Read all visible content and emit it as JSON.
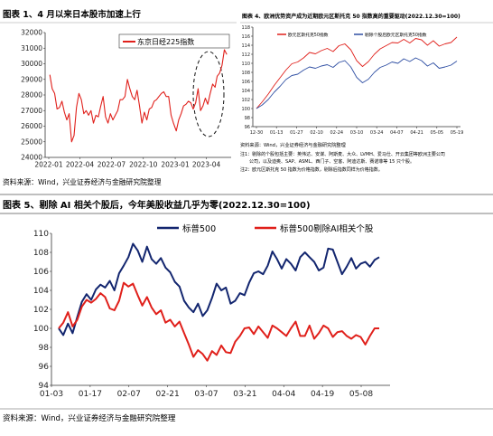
{
  "colors": {
    "heading": "#1a1a1a",
    "grid": "#d9d9d9",
    "axis": "#333333",
    "red": "#e0201b",
    "navy": "#13266f",
    "blue": "#2f4fa3",
    "note": "#444444"
  },
  "panels": {
    "p1": {
      "heading": "图表 1、4 月以来日本股市加速上行",
      "source": "资料来源：Wind，兴业证券经济与金融研究院整理"
    },
    "p2": {
      "heading": "图表 4、欧洲优势资产成为近期欧元区斯托克 50 指数高的重要驱动(2022.12.30=100)",
      "source": "资料来源：Wind，兴业证券经济与金融研究院整理",
      "notes": [
        "注1：剔除的个股包括主要：英伟达、安谋、阿斯麦、大众、LVMH、爱马仕、开云集团等欧洲主要公司",
        "公司，以及迪奥、SAP、ASML、西门子、空客、阿迪达斯、赛诺菲等 15 只个股。",
        "注2：欧元区斯托克 50 指数为价格指数，剔除后指数同样为价格指数。"
      ]
    },
    "p3": {
      "heading": "图表 5、剔除 AI 相关个股后，今年美股收益几乎为零(2022.12.30=100)",
      "source": "资料来源：Wind，兴业证券经济与金融研究院整理"
    }
  },
  "chart_data": [
    {
      "type": "line",
      "title": "",
      "legend": [
        "东京日经225指数"
      ],
      "legend_position": "top-right",
      "ylim": [
        24000,
        32000
      ],
      "yticks": [
        24000,
        25000,
        26000,
        27000,
        28000,
        29000,
        30000,
        31000,
        32000
      ],
      "xticks": [
        "2022-01",
        "2022-04",
        "2022-07",
        "2022-10",
        "2023-01",
        "2023-04"
      ],
      "grid": false,
      "annotation": "dashed ellipse around Apr–May 2023 rally",
      "series": [
        {
          "name": "东京日经225指数",
          "color": "red",
          "x": [
            "2022-01-04",
            "2022-01-11",
            "2022-01-18",
            "2022-01-25",
            "2022-02-01",
            "2022-02-08",
            "2022-02-15",
            "2022-02-22",
            "2022-03-01",
            "2022-03-08",
            "2022-03-15",
            "2022-03-22",
            "2022-03-29",
            "2022-04-05",
            "2022-04-12",
            "2022-04-19",
            "2022-04-26",
            "2022-05-03",
            "2022-05-10",
            "2022-05-17",
            "2022-05-24",
            "2022-05-31",
            "2022-06-07",
            "2022-06-14",
            "2022-06-21",
            "2022-06-28",
            "2022-07-05",
            "2022-07-12",
            "2022-07-19",
            "2022-07-26",
            "2022-08-02",
            "2022-08-09",
            "2022-08-16",
            "2022-08-23",
            "2022-08-30",
            "2022-09-06",
            "2022-09-13",
            "2022-09-20",
            "2022-09-27",
            "2022-10-04",
            "2022-10-11",
            "2022-10-18",
            "2022-10-25",
            "2022-11-01",
            "2022-11-08",
            "2022-11-15",
            "2022-11-22",
            "2022-11-29",
            "2022-12-06",
            "2022-12-13",
            "2022-12-20",
            "2022-12-27",
            "2023-01-04",
            "2023-01-11",
            "2023-01-18",
            "2023-01-25",
            "2023-02-01",
            "2023-02-08",
            "2023-02-15",
            "2023-02-22",
            "2023-03-01",
            "2023-03-08",
            "2023-03-15",
            "2023-03-22",
            "2023-03-29",
            "2023-04-05",
            "2023-04-12",
            "2023-04-19",
            "2023-04-26",
            "2023-05-02",
            "2023-05-09",
            "2023-05-16",
            "2023-05-23",
            "2023-05-30"
          ],
          "values": [
            29300,
            28400,
            28100,
            27100,
            27200,
            27600,
            26900,
            26400,
            26800,
            25000,
            25400,
            27200,
            28100,
            27700,
            26800,
            27000,
            26700,
            27000,
            26200,
            26700,
            26600,
            27300,
            27900,
            26600,
            26200,
            26800,
            26400,
            26700,
            27000,
            27700,
            27700,
            27900,
            29000,
            28400,
            27900,
            27700,
            28300,
            27300,
            26200,
            26900,
            26400,
            27100,
            27200,
            27600,
            27700,
            27900,
            28100,
            28200,
            27900,
            27900,
            26700,
            26200,
            25700,
            26400,
            26800,
            27300,
            27400,
            27600,
            27500,
            27100,
            27500,
            28400,
            27000,
            27300,
            27800,
            27400,
            28100,
            28700,
            28500,
            29200,
            29400,
            29900,
            30900,
            30600
          ]
        }
      ]
    },
    {
      "type": "line",
      "title": "",
      "ylim": [
        96,
        118
      ],
      "yticks": [
        96,
        98,
        100,
        102,
        104,
        106,
        108,
        110,
        112,
        114,
        116,
        118
      ],
      "xticks": [
        "12-30",
        "01-13",
        "01-27",
        "02-10",
        "02-24",
        "03-10",
        "03-24",
        "04-07",
        "04-21",
        "05-05",
        "05-19"
      ],
      "grid": false,
      "legend_position": "top-right",
      "series": [
        {
          "name": "欧元区斯托克50指数",
          "color": "red",
          "values": [
            100,
            101.5,
            103.2,
            105.1,
            106.8,
            108.5,
            109.9,
            110.3,
            111.2,
            112.4,
            112.1,
            112.8,
            113.3,
            112.6,
            113.9,
            114.3,
            113.0,
            110.6,
            109.3,
            110.4,
            112.0,
            113.2,
            113.9,
            114.6,
            114.5,
            115.3,
            114.5,
            115.5,
            115.2,
            114.0,
            115.0,
            113.8,
            114.3,
            114.6,
            115.8
          ]
        },
        {
          "name": "剔除个股后欧元区斯托克50指数",
          "color": "blue",
          "values": [
            100,
            100.8,
            102.0,
            103.6,
            104.9,
            106.4,
            107.3,
            107.6,
            108.5,
            109.2,
            108.9,
            109.4,
            109.7,
            109.1,
            110.2,
            110.6,
            109.2,
            106.9,
            105.7,
            106.5,
            108.0,
            109.1,
            109.6,
            110.3,
            110.0,
            111.0,
            110.4,
            111.2,
            110.6,
            109.4,
            110.1,
            108.9,
            109.2,
            109.6,
            110.5
          ]
        }
      ]
    },
    {
      "type": "line",
      "title": "",
      "ylim": [
        94,
        110
      ],
      "yticks": [
        94,
        96,
        98,
        100,
        102,
        104,
        106,
        108,
        110
      ],
      "xticks": [
        "01-03",
        "01-17",
        "02-07",
        "02-21",
        "03-07",
        "03-21",
        "04-04",
        "04-19",
        "05-08"
      ],
      "grid": false,
      "legend_position": "top",
      "series": [
        {
          "name": "标普500",
          "color": "navy",
          "values": [
            100,
            99.3,
            100.5,
            99.5,
            101.2,
            102.8,
            103.6,
            103.0,
            104.1,
            104.6,
            104.3,
            105.0,
            104.0,
            105.8,
            106.6,
            107.5,
            108.9,
            108.2,
            107.0,
            108.6,
            107.3,
            106.8,
            107.4,
            106.4,
            105.9,
            104.9,
            104.4,
            102.9,
            102.2,
            101.7,
            102.6,
            101.3,
            101.9,
            103.2,
            104.7,
            104.0,
            104.3,
            102.6,
            102.9,
            103.7,
            103.5,
            104.8,
            105.8,
            106.0,
            105.7,
            106.6,
            108.1,
            107.3,
            106.3,
            107.3,
            106.8,
            106.1,
            107.5,
            108.0,
            107.5,
            107.0,
            106.1,
            106.4,
            108.4,
            108.3,
            107.0,
            105.7,
            106.5,
            107.4,
            106.3,
            106.8,
            107.0,
            106.5,
            107.2,
            107.5
          ]
        },
        {
          "name": "标普500剔除AI相关个股",
          "color": "red",
          "values": [
            100,
            100.6,
            101.7,
            100.2,
            100.9,
            102.3,
            103.0,
            102.7,
            103.1,
            103.7,
            103.3,
            102.1,
            101.9,
            102.9,
            104.8,
            104.4,
            104.7,
            103.5,
            102.4,
            103.3,
            102.2,
            101.5,
            101.9,
            100.6,
            100.9,
            100.2,
            100.7,
            99.5,
            98.3,
            97.0,
            97.7,
            97.3,
            96.6,
            97.6,
            97.2,
            98.2,
            97.5,
            97.4,
            98.6,
            99.2,
            100.0,
            100.1,
            99.4,
            100.2,
            99.6,
            99.0,
            100.3,
            100.0,
            99.6,
            99.2,
            100.0,
            100.7,
            99.2,
            99.2,
            100.3,
            98.9,
            99.5,
            100.3,
            100.0,
            99.1,
            99.6,
            99.7,
            99.2,
            98.9,
            99.3,
            99.1,
            98.3,
            99.2,
            100.0,
            100.0
          ]
        }
      ]
    }
  ]
}
